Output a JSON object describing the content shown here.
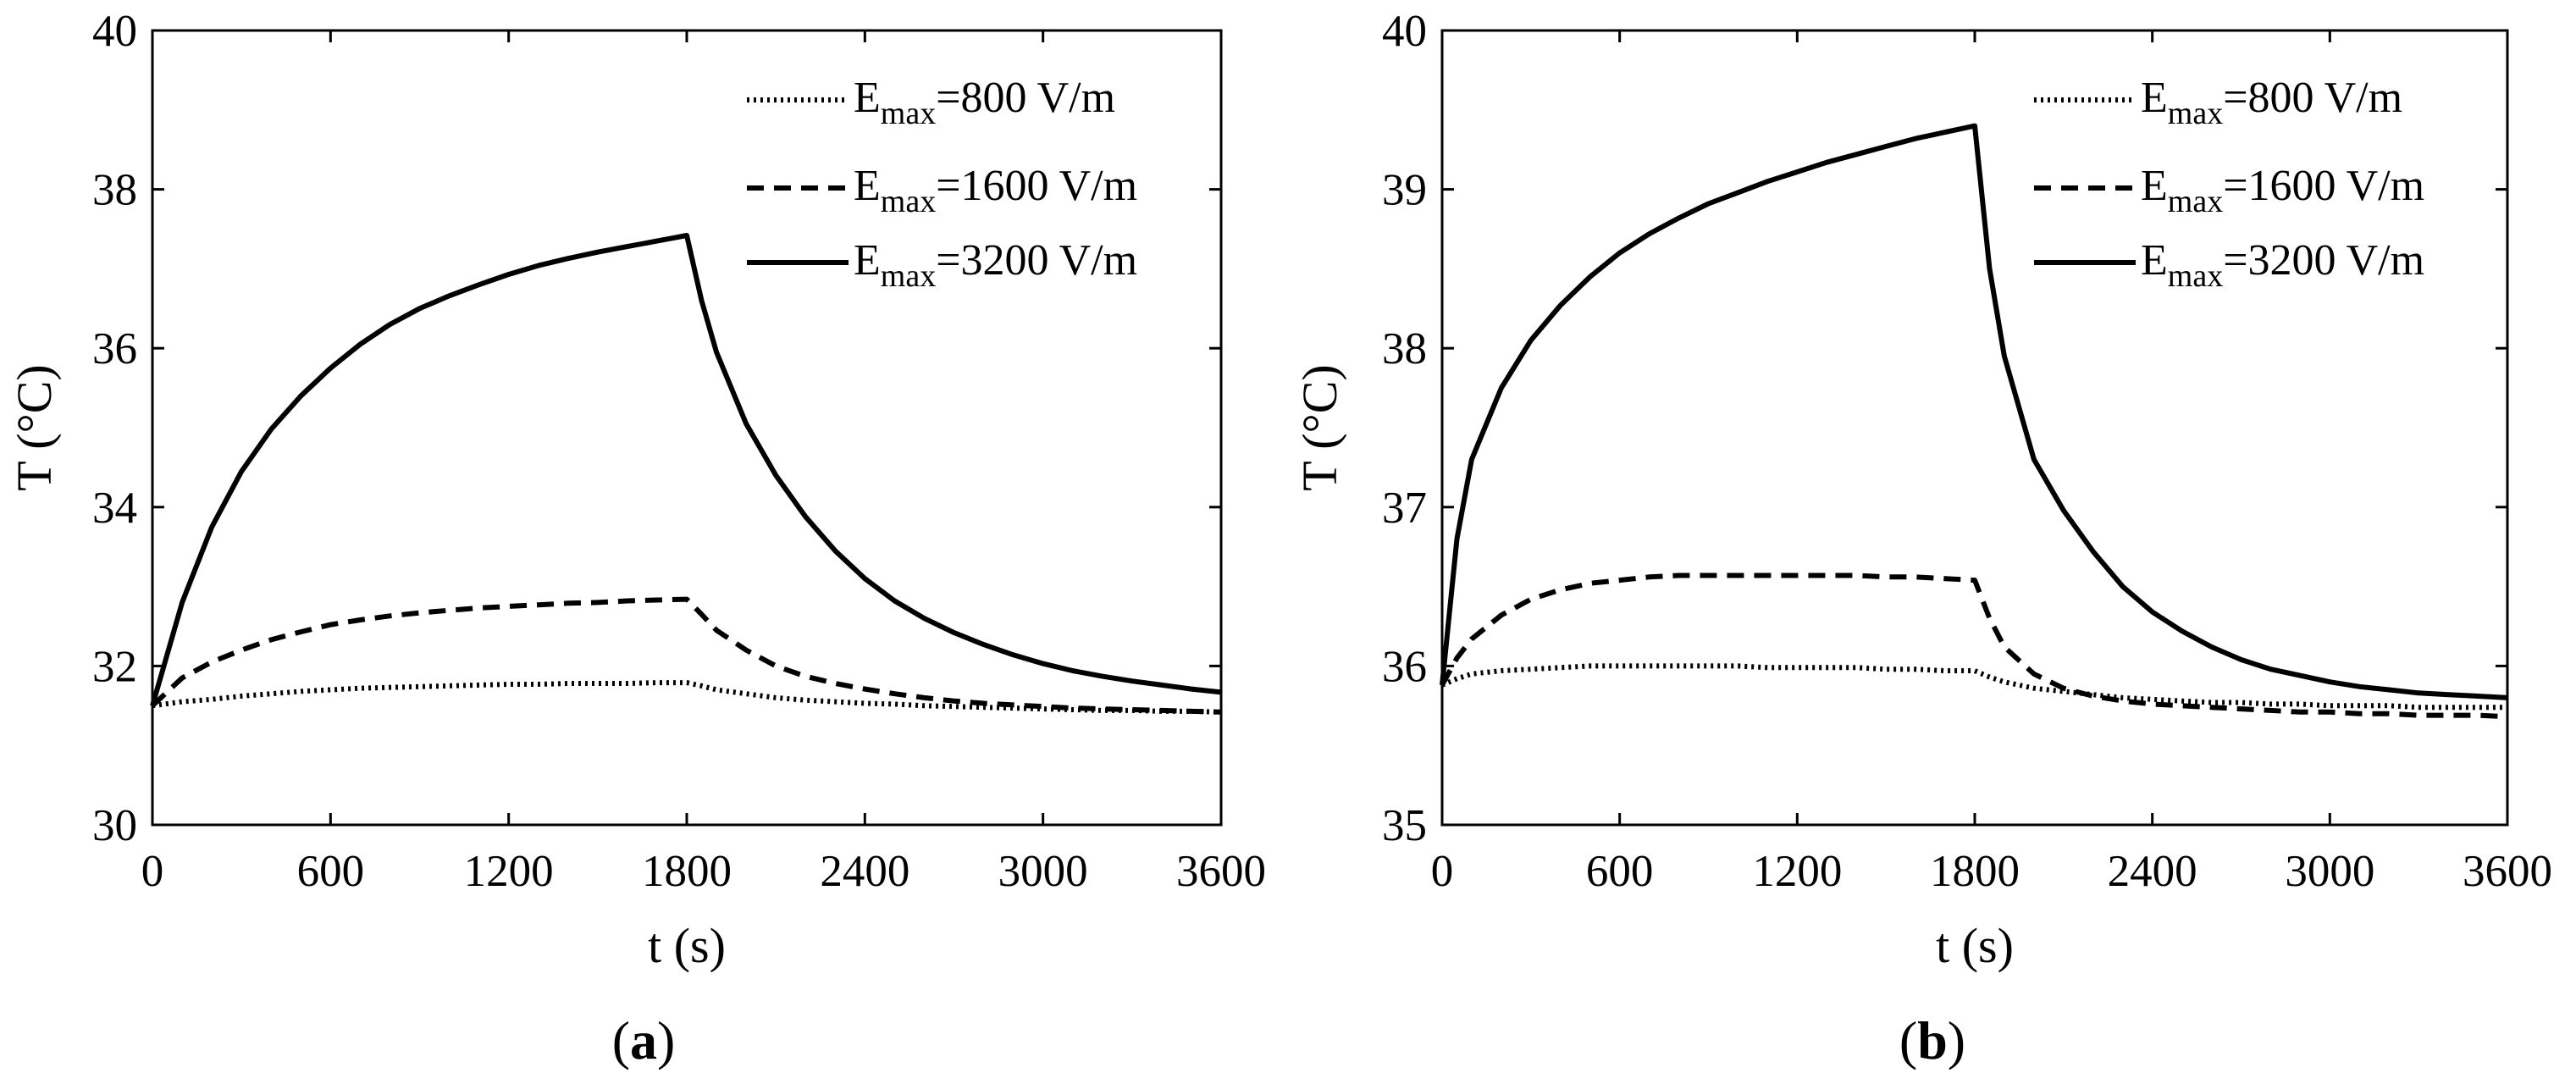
{
  "chart_data": [
    {
      "type": "line",
      "panel_label": "a",
      "xlabel": "t (s)",
      "ylabel": "T (°C)",
      "xlim": [
        0,
        3600
      ],
      "ylim": [
        30,
        40
      ],
      "xticks": [
        0,
        600,
        1200,
        1800,
        2400,
        3000,
        3600
      ],
      "yticks": [
        30,
        32,
        34,
        36,
        38,
        40
      ],
      "legend_position": "top-right",
      "x": [
        0,
        100,
        200,
        300,
        400,
        500,
        600,
        700,
        800,
        900,
        1000,
        1100,
        1200,
        1300,
        1400,
        1500,
        1600,
        1700,
        1800,
        1850,
        1900,
        2000,
        2100,
        2200,
        2300,
        2400,
        2500,
        2600,
        2700,
        2800,
        2900,
        3000,
        3100,
        3200,
        3300,
        3400,
        3500,
        3600
      ],
      "series": [
        {
          "name": "E_max=800 V/m",
          "legend_main": "E",
          "legend_sub": "max",
          "legend_tail": "=800 V/m",
          "style": "dotted",
          "values": [
            31.5,
            31.55,
            31.58,
            31.62,
            31.65,
            31.68,
            31.7,
            31.72,
            31.73,
            31.74,
            31.75,
            31.76,
            31.77,
            31.77,
            31.78,
            31.78,
            31.78,
            31.79,
            31.79,
            31.75,
            31.7,
            31.65,
            31.6,
            31.57,
            31.55,
            31.53,
            31.52,
            31.5,
            31.49,
            31.48,
            31.47,
            31.46,
            31.45,
            31.44,
            31.44,
            31.43,
            31.43,
            31.42
          ]
        },
        {
          "name": "E_max=1600 V/m",
          "legend_main": "E",
          "legend_sub": "max",
          "legend_tail": "=1600 V/m",
          "style": "dashed",
          "values": [
            31.5,
            31.85,
            32.05,
            32.2,
            32.33,
            32.43,
            32.52,
            32.58,
            32.63,
            32.67,
            32.7,
            32.73,
            32.75,
            32.77,
            32.79,
            32.8,
            32.82,
            32.83,
            32.84,
            32.65,
            32.45,
            32.2,
            32.0,
            31.87,
            31.78,
            31.71,
            31.65,
            31.6,
            31.56,
            31.53,
            31.51,
            31.49,
            31.47,
            31.46,
            31.45,
            31.44,
            31.43,
            31.42
          ]
        },
        {
          "name": "E_max=3200 V/m",
          "legend_main": "E",
          "legend_sub": "max",
          "legend_tail": "=3200 V/m",
          "style": "solid",
          "values": [
            31.5,
            32.8,
            33.75,
            34.45,
            34.98,
            35.4,
            35.75,
            36.05,
            36.3,
            36.5,
            36.66,
            36.8,
            36.93,
            37.04,
            37.13,
            37.21,
            37.28,
            37.35,
            37.42,
            36.6,
            35.95,
            35.05,
            34.4,
            33.88,
            33.45,
            33.1,
            32.82,
            32.6,
            32.42,
            32.27,
            32.14,
            32.03,
            31.94,
            31.87,
            31.81,
            31.76,
            31.71,
            31.67
          ]
        }
      ]
    },
    {
      "type": "line",
      "panel_label": "b",
      "xlabel": "t (s)",
      "ylabel": "T (°C)",
      "xlim": [
        0,
        3600
      ],
      "ylim": [
        35,
        40
      ],
      "xticks": [
        0,
        600,
        1200,
        1800,
        2400,
        3000,
        3600
      ],
      "yticks": [
        35,
        36,
        37,
        38,
        39,
        40
      ],
      "legend_position": "top-right",
      "x": [
        0,
        50,
        100,
        200,
        300,
        400,
        500,
        600,
        700,
        800,
        900,
        1000,
        1100,
        1200,
        1300,
        1400,
        1500,
        1600,
        1700,
        1800,
        1850,
        1900,
        2000,
        2100,
        2200,
        2300,
        2400,
        2500,
        2600,
        2700,
        2800,
        2900,
        3000,
        3100,
        3200,
        3300,
        3400,
        3500,
        3600
      ],
      "series": [
        {
          "name": "E_max=800 V/m",
          "legend_main": "E",
          "legend_sub": "max",
          "legend_tail": "=800 V/m",
          "style": "dotted",
          "values": [
            35.88,
            35.92,
            35.95,
            35.97,
            35.98,
            35.99,
            36.0,
            36.0,
            36.0,
            36.0,
            36.0,
            36.0,
            35.99,
            35.99,
            35.99,
            35.99,
            35.98,
            35.98,
            35.97,
            35.97,
            35.93,
            35.9,
            35.86,
            35.84,
            35.82,
            35.8,
            35.79,
            35.78,
            35.77,
            35.77,
            35.76,
            35.76,
            35.75,
            35.75,
            35.75,
            35.74,
            35.74,
            35.74,
            35.74
          ]
        },
        {
          "name": "E_max=1600 V/m",
          "legend_main": "E",
          "legend_sub": "max",
          "legend_tail": "=1600 V/m",
          "style": "dashed",
          "values": [
            35.88,
            36.05,
            36.17,
            36.32,
            36.42,
            36.48,
            36.52,
            36.54,
            36.56,
            36.57,
            36.57,
            36.57,
            36.57,
            36.57,
            36.57,
            36.57,
            36.56,
            36.56,
            36.55,
            36.54,
            36.3,
            36.12,
            35.95,
            35.86,
            35.81,
            35.78,
            35.76,
            35.75,
            35.74,
            35.73,
            35.72,
            35.71,
            35.71,
            35.7,
            35.7,
            35.69,
            35.69,
            35.69,
            35.68
          ]
        },
        {
          "name": "E_max=3200 V/m",
          "legend_main": "E",
          "legend_sub": "max",
          "legend_tail": "=3200 V/m",
          "style": "solid",
          "values": [
            35.88,
            36.8,
            37.3,
            37.75,
            38.05,
            38.27,
            38.45,
            38.6,
            38.72,
            38.82,
            38.91,
            38.98,
            39.05,
            39.11,
            39.17,
            39.22,
            39.27,
            39.32,
            39.36,
            39.4,
            38.5,
            37.95,
            37.3,
            36.98,
            36.72,
            36.5,
            36.34,
            36.22,
            36.12,
            36.04,
            35.98,
            35.94,
            35.9,
            35.87,
            35.85,
            35.83,
            35.82,
            35.81,
            35.8
          ]
        }
      ]
    }
  ]
}
